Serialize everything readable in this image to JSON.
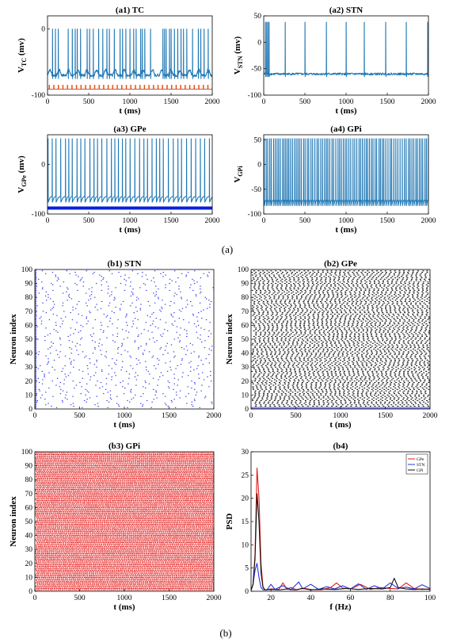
{
  "captions": {
    "a": "(a)",
    "b": "(b)"
  },
  "chart_data": [
    {
      "id": "a1",
      "type": "line",
      "title": "(a1) TC",
      "xlabel": "t (ms)",
      "ylabel_main": "V",
      "ylabel_sub": "TC",
      "ylabel_unit": " (mv)",
      "xlim": [
        0,
        2000
      ],
      "ylim": [
        -100,
        20
      ],
      "xticks": [
        0,
        500,
        1000,
        1500,
        2000
      ],
      "xtick_labels": [
        "0",
        "500",
        "1000",
        "1500",
        "2000"
      ],
      "yticks": [
        -100,
        0
      ],
      "ytick_labels": [
        "-100",
        "0"
      ],
      "series": [
        {
          "color": "#1f77b4",
          "baseline": -70,
          "peak": 0,
          "spike_times": [
            60,
            95,
            130,
            250,
            300,
            335,
            360,
            400,
            480,
            510,
            555,
            620,
            670,
            720,
            750,
            810,
            880,
            910,
            950,
            1000,
            1045,
            1075,
            1130,
            1150,
            1180,
            1250,
            1400,
            1420,
            1440,
            1480,
            1500,
            1540,
            1580,
            1620,
            1650,
            1690,
            1760,
            1830,
            1860,
            1900,
            1950
          ]
        },
        {
          "color": "#e0531f",
          "baseline": -91,
          "peak": -85,
          "pulse_period": 55,
          "pulse_start": 20
        }
      ]
    },
    {
      "id": "a2",
      "type": "line",
      "title": "(a2) STN",
      "xlabel": "t (ms)",
      "ylabel_main": "V",
      "ylabel_sub": "STN",
      "ylabel_unit": " (mv)",
      "xlim": [
        0,
        2000
      ],
      "ylim": [
        -100,
        50
      ],
      "xticks": [
        0,
        500,
        1000,
        1500,
        2000
      ],
      "xtick_labels": [
        "0",
        "500",
        "1000",
        "1500",
        "2000"
      ],
      "yticks": [
        -100,
        -50,
        0,
        50
      ],
      "ytick_labels": [
        "-100",
        "-50",
        "0",
        "50"
      ],
      "series": [
        {
          "color": "#1f77b4",
          "baseline": -60,
          "peak": 38,
          "spike_times": [
            20,
            35,
            50,
            65,
            260,
            500,
            760,
            1000,
            1220,
            1480,
            1730,
            1990
          ]
        }
      ]
    },
    {
      "id": "a3",
      "type": "line",
      "title": "(a3) GPe",
      "xlabel": "t (ms)",
      "ylabel_main": "V",
      "ylabel_sub": "GPe",
      "ylabel_unit": " (mv)",
      "xlim": [
        0,
        2000
      ],
      "ylim": [
        -100,
        60
      ],
      "xticks": [
        0,
        500,
        1000,
        1500,
        2000
      ],
      "xtick_labels": [
        "0",
        "500",
        "1000",
        "1500",
        "2000"
      ],
      "yticks": [
        -100,
        0
      ],
      "ytick_labels": [
        "-100",
        "0"
      ],
      "series": [
        {
          "color": "#1f77b4",
          "baseline": -68,
          "peak": 52,
          "spike_interval": 48
        },
        {
          "color": "#0a1fd6",
          "baseline": -88,
          "peak": -88,
          "thick": true
        }
      ]
    },
    {
      "id": "a4",
      "type": "line",
      "title": "(a4) GPi",
      "xlabel": "t (ms)",
      "ylabel_main": "V",
      "ylabel_sub": "GPi",
      "ylabel_unit": "",
      "xlim": [
        0,
        2000
      ],
      "ylim": [
        -100,
        60
      ],
      "xticks": [
        0,
        500,
        1000,
        1500,
        2000
      ],
      "xtick_labels": [
        "0",
        "500",
        "1000",
        "1500",
        "2000"
      ],
      "yticks": [
        -100,
        -50,
        0,
        50
      ],
      "ytick_labels": [
        "-100",
        "-50",
        "0",
        "50"
      ],
      "series": [
        {
          "color": "#1f77b4",
          "baseline": -75,
          "peak": 52,
          "spike_interval": 22
        }
      ]
    },
    {
      "id": "b1",
      "type": "scatter",
      "title": "(b1) STN",
      "xlabel": "t (ms)",
      "ylabel": "Neuron index",
      "xlim": [
        0,
        2000
      ],
      "ylim": [
        0,
        100
      ],
      "xticks": [
        0,
        500,
        1000,
        1500,
        2000
      ],
      "xtick_labels": [
        "0",
        "500",
        "1000",
        "1500",
        "2000"
      ],
      "yticks": [
        0,
        10,
        20,
        30,
        40,
        50,
        60,
        70,
        80,
        90,
        100
      ],
      "ytick_labels": [
        "0",
        "10",
        "20",
        "30",
        "40",
        "50",
        "60",
        "70",
        "80",
        "90",
        "100"
      ],
      "color": "#2b33e6",
      "neurons": 100,
      "interval_ms": 250
    },
    {
      "id": "b2",
      "type": "scatter",
      "title": "(b2) GPe",
      "xlabel": "t (ms)",
      "ylabel": "Neuron index",
      "xlim": [
        0,
        2000
      ],
      "ylim": [
        0,
        100
      ],
      "xticks": [
        0,
        500,
        1000,
        1500,
        2000
      ],
      "xtick_labels": [
        "0",
        "500",
        "1000",
        "1500",
        "2000"
      ],
      "yticks": [
        0,
        10,
        20,
        30,
        40,
        50,
        60,
        70,
        80,
        90,
        100
      ],
      "ytick_labels": [
        "0",
        "10",
        "20",
        "30",
        "40",
        "50",
        "60",
        "70",
        "80",
        "90",
        "100"
      ],
      "color": "#111111",
      "neurons": 100,
      "interval_ms": 50,
      "bottom_band_color": "#7f86ee"
    },
    {
      "id": "b3",
      "type": "scatter",
      "title": "(b3) GPi",
      "xlabel": "t (ms)",
      "ylabel": "Neuron index",
      "xlim": [
        0,
        2000
      ],
      "ylim": [
        0,
        100
      ],
      "xticks": [
        0,
        500,
        1000,
        1500,
        2000
      ],
      "xtick_labels": [
        "0",
        "500",
        "1000",
        "1500",
        "2000"
      ],
      "yticks": [
        0,
        10,
        20,
        30,
        40,
        50,
        60,
        70,
        80,
        90,
        100
      ],
      "ytick_labels": [
        "0",
        "10",
        "20",
        "30",
        "40",
        "50",
        "60",
        "70",
        "80",
        "90",
        "100"
      ],
      "color": "#e21b1b",
      "neurons": 100,
      "interval_ms": 22
    },
    {
      "id": "b4",
      "type": "line",
      "title": "(b4)",
      "xlabel": "f (Hz)",
      "ylabel": "PSD",
      "xlim": [
        10,
        100
      ],
      "ylim": [
        0,
        30
      ],
      "xticks": [
        20,
        40,
        60,
        80,
        100
      ],
      "xtick_labels": [
        "20",
        "40",
        "60",
        "80",
        "100"
      ],
      "yticks": [
        0,
        5,
        10,
        15,
        20,
        25,
        30
      ],
      "ytick_labels": [
        "0",
        "5",
        "10",
        "15",
        "20",
        "25",
        "30"
      ],
      "legend": "top-right",
      "series": [
        {
          "name": "GPe",
          "color": "#e21b1b",
          "x": [
            10,
            11,
            12,
            13,
            14,
            15,
            16,
            17,
            20,
            24,
            26,
            28,
            30,
            33,
            36,
            40,
            45,
            50,
            53,
            56,
            60,
            65,
            70,
            75,
            80,
            84,
            88,
            92,
            96,
            100
          ],
          "y": [
            0.2,
            1.5,
            8,
            26.5,
            20,
            6,
            1,
            0.3,
            0.5,
            0.4,
            1.8,
            0.5,
            0.8,
            0.3,
            0.7,
            0.4,
            0.3,
            0.8,
            1.8,
            0.7,
            0.5,
            1.5,
            0.4,
            0.8,
            0.6,
            0.5,
            1.8,
            0.6,
            0.4,
            0.5
          ]
        },
        {
          "name": "STN",
          "color": "#2b33e6",
          "x": [
            10,
            11,
            12,
            13,
            14,
            15,
            16,
            18,
            20,
            22,
            26,
            30,
            34,
            36,
            40,
            44,
            48,
            52,
            56,
            60,
            64,
            68,
            72,
            76,
            80,
            84,
            88,
            92,
            96,
            100
          ],
          "y": [
            0.3,
            1.5,
            4.5,
            6,
            3,
            0.8,
            0.3,
            0.3,
            1.5,
            0.4,
            1.2,
            0.3,
            2,
            0.5,
            1.5,
            0.4,
            1,
            0.5,
            1.2,
            0.5,
            1.6,
            0.4,
            1.2,
            0.5,
            1.8,
            0.6,
            0.9,
            0.5,
            1.4,
            0.6
          ]
        },
        {
          "name": "GPi",
          "color": "#111111",
          "x": [
            10,
            11,
            12,
            13,
            14,
            15,
            16,
            17,
            20,
            24,
            28,
            32,
            36,
            40,
            46,
            52,
            58,
            64,
            70,
            76,
            80,
            82,
            84,
            88,
            92,
            96,
            100
          ],
          "y": [
            0.2,
            1.5,
            7,
            21,
            15,
            4,
            0.8,
            0.3,
            0.4,
            0.3,
            0.5,
            0.3,
            0.6,
            0.3,
            0.5,
            0.4,
            0.6,
            0.4,
            0.6,
            0.5,
            0.8,
            2.8,
            0.8,
            0.5,
            0.4,
            0.5,
            0.4
          ]
        }
      ]
    }
  ]
}
